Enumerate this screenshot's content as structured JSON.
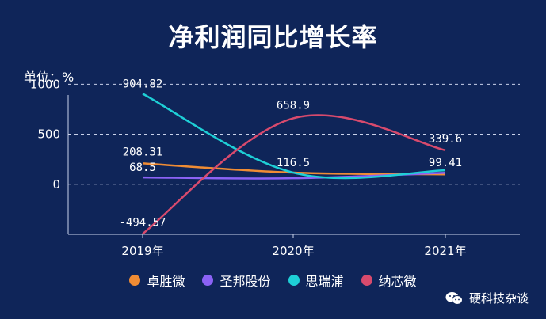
{
  "chart_data": {
    "type": "line",
    "title": "净利润同比增长率",
    "unit_label": "单位：%",
    "categories": [
      "2019年",
      "2020年",
      "2021年"
    ],
    "ylim": [
      -500,
      1050
    ],
    "yticks": [
      0,
      500,
      1000
    ],
    "grid": true,
    "legend_position": "bottom",
    "series": [
      {
        "name": "卓胜微",
        "color": "#f08c34",
        "values": [
          208.31,
          116.5,
          99.41
        ],
        "labels": [
          "208.31",
          "",
          "99.41"
        ]
      },
      {
        "name": "圣邦股份",
        "color": "#8b62f5",
        "values": [
          68.5,
          60,
          115
        ],
        "labels": [
          "68.5",
          "",
          ""
        ]
      },
      {
        "name": "思瑞浦",
        "color": "#1ecfd6",
        "values": [
          904.82,
          116.5,
          140
        ],
        "labels": [
          "904.82",
          "116.5",
          ""
        ]
      },
      {
        "name": "纳芯微",
        "color": "#d84a6d",
        "values": [
          -494.57,
          658.9,
          339.6
        ],
        "labels": [
          "-494.57",
          "658.9",
          "339.6"
        ]
      }
    ]
  },
  "watermark": "硬科技杂谈"
}
